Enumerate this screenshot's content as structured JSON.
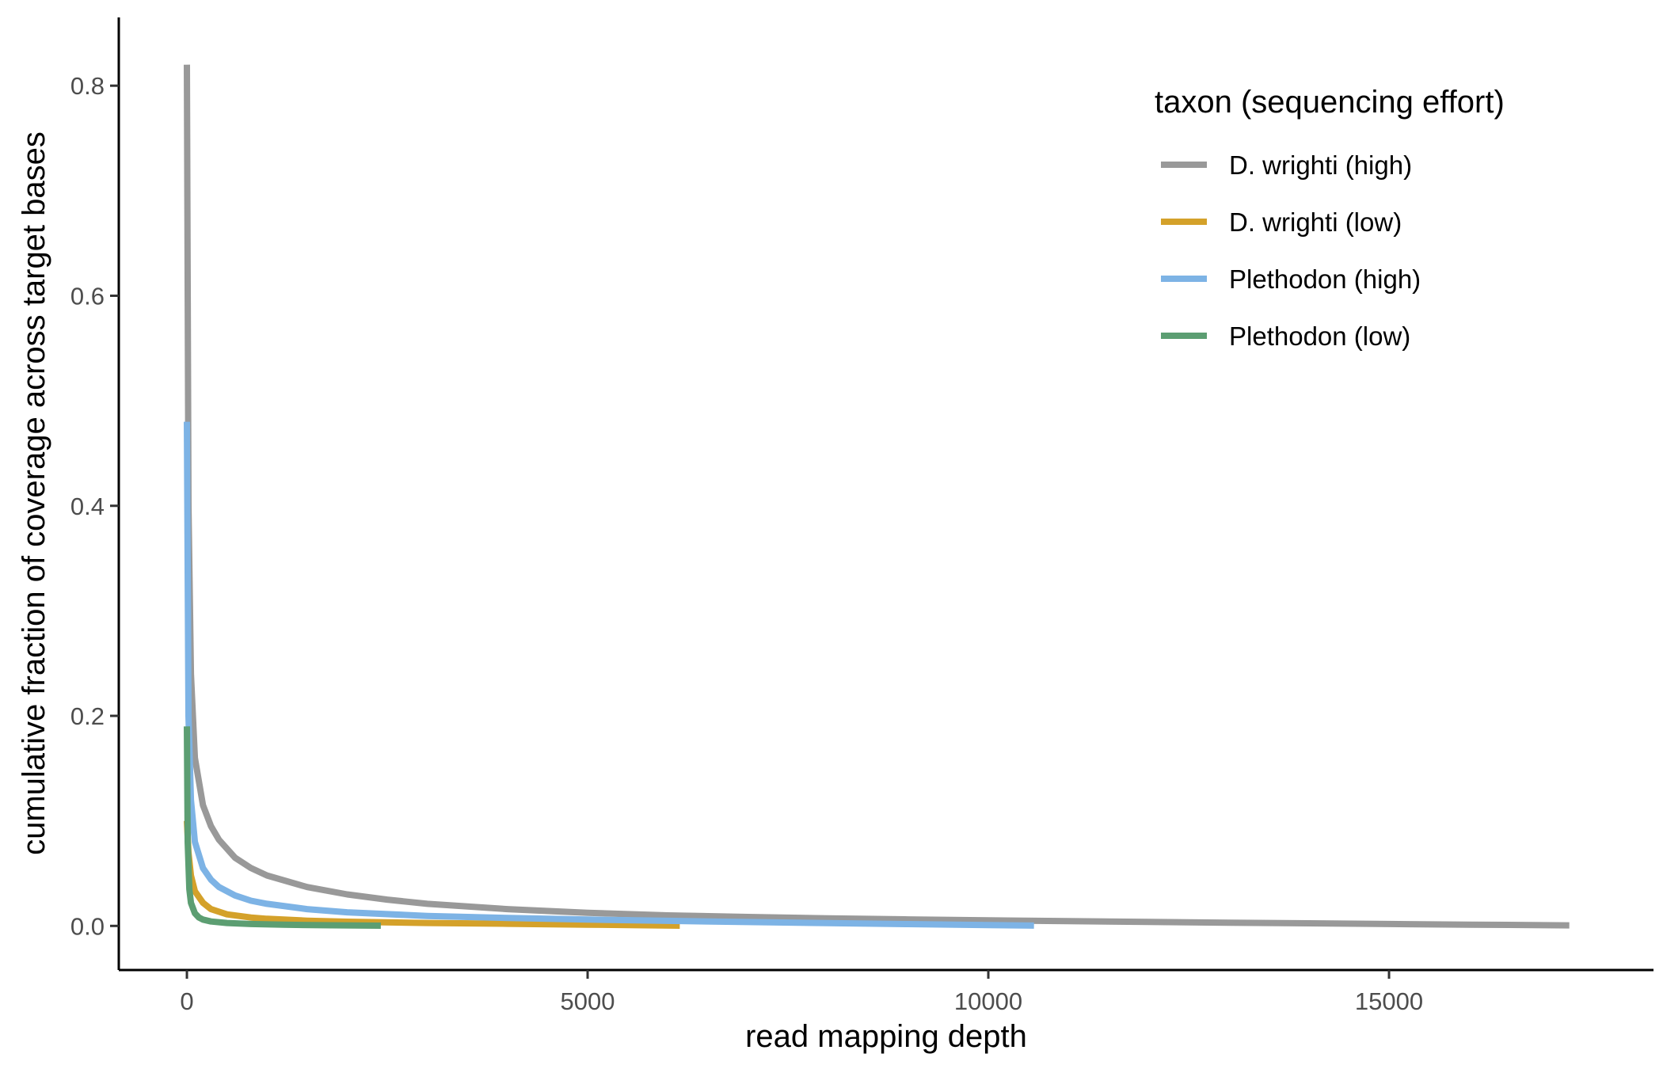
{
  "chart_data": {
    "type": "line",
    "title": "",
    "xlabel": "read mapping depth",
    "ylabel": "cumulative fraction of coverage across target bases",
    "xlim": [
      -850,
      18300
    ],
    "ylim": [
      -0.042,
      0.865
    ],
    "x_ticks": [
      0,
      5000,
      10000,
      15000
    ],
    "y_ticks": [
      0.0,
      0.2,
      0.4,
      0.6,
      0.8
    ],
    "x_tick_labels": [
      "0",
      "5000",
      "10000",
      "15000"
    ],
    "y_tick_labels": [
      "0.0",
      "0.2",
      "0.4",
      "0.6",
      "0.8"
    ],
    "grid": false,
    "legend": {
      "title": "taxon (sequencing effort)",
      "position": "top-right"
    },
    "series": [
      {
        "name": "D. wrighti (high)",
        "color": "#999999",
        "x": [
          0,
          20,
          50,
          100,
          200,
          300,
          400,
          600,
          800,
          1000,
          1500,
          2000,
          2500,
          3000,
          4000,
          5000,
          6000,
          7000,
          8000,
          9000,
          10000,
          11000,
          12000,
          13000,
          14000,
          15000,
          16000,
          17250
        ],
        "y": [
          0.82,
          0.4,
          0.24,
          0.16,
          0.115,
          0.095,
          0.082,
          0.065,
          0.055,
          0.048,
          0.037,
          0.03,
          0.025,
          0.021,
          0.016,
          0.0125,
          0.01,
          0.0085,
          0.0072,
          0.0062,
          0.0053,
          0.0045,
          0.0038,
          0.0031,
          0.0025,
          0.0018,
          0.0012,
          0.0005
        ]
      },
      {
        "name": "D. wrighti (low)",
        "color": "#D4A12A",
        "x": [
          0,
          20,
          50,
          100,
          200,
          300,
          500,
          800,
          1000,
          1500,
          2000,
          3000,
          4000,
          5000,
          6150
        ],
        "y": [
          0.1,
          0.07,
          0.048,
          0.033,
          0.022,
          0.016,
          0.011,
          0.008,
          0.0068,
          0.005,
          0.004,
          0.0028,
          0.002,
          0.0012,
          0.0002
        ]
      },
      {
        "name": "Plethodon (high)",
        "color": "#7DB3E5",
        "x": [
          0,
          20,
          50,
          100,
          200,
          300,
          400,
          600,
          800,
          1000,
          1500,
          2000,
          3000,
          4000,
          5000,
          6000,
          7000,
          8000,
          9000,
          10000,
          10570
        ],
        "y": [
          0.48,
          0.2,
          0.12,
          0.08,
          0.055,
          0.044,
          0.037,
          0.029,
          0.024,
          0.021,
          0.016,
          0.013,
          0.0095,
          0.0075,
          0.006,
          0.0048,
          0.0037,
          0.0027,
          0.0017,
          0.0008,
          0.0003
        ]
      },
      {
        "name": "Plethodon (low)",
        "color": "#5C9E72",
        "x": [
          0,
          10,
          30,
          50,
          100,
          150,
          200,
          300,
          500,
          800,
          1200,
          1800,
          2420
        ],
        "y": [
          0.19,
          0.08,
          0.035,
          0.022,
          0.012,
          0.008,
          0.006,
          0.0042,
          0.0028,
          0.0018,
          0.0011,
          0.0006,
          0.0002
        ]
      }
    ]
  }
}
